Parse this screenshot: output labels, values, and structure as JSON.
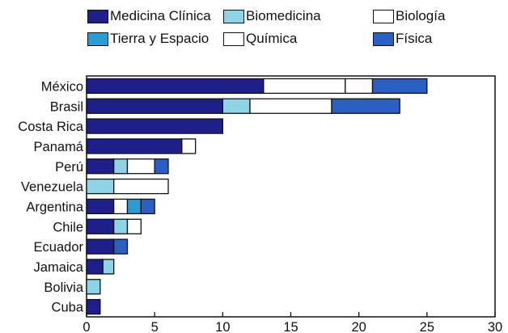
{
  "chart_data": {
    "type": "bar",
    "orientation": "horizontal",
    "stacked": true,
    "categories": [
      "México",
      "Brasil",
      "Costa Rica",
      "Panamá",
      "Perú",
      "Venezuela",
      "Argentina",
      "Chile",
      "Ecuador",
      "Jamaica",
      "Bolivia",
      "Cuba"
    ],
    "series": [
      {
        "name": "Medicina Clínica",
        "color": "#1f1f8c",
        "values": [
          13,
          10,
          10,
          7,
          2,
          0,
          2,
          2,
          2,
          1.2,
          0,
          1
        ]
      },
      {
        "name": "Biomedicina",
        "color": "#8fd4e6",
        "values": [
          0,
          2,
          0,
          0,
          1,
          2,
          0,
          1,
          0,
          0.8,
          1,
          0
        ]
      },
      {
        "name": "Biología",
        "color": "#ffffff",
        "values": [
          6,
          0,
          0,
          1,
          2,
          4,
          1,
          1,
          0,
          0,
          0,
          0
        ]
      },
      {
        "name": "Tierra y Espacio",
        "color": "#2a9bd6",
        "values": [
          0,
          0,
          0,
          0,
          0,
          0,
          1,
          0,
          0,
          0,
          0,
          0
        ]
      },
      {
        "name": "Química",
        "color": "#ffffff",
        "values": [
          2,
          6,
          0,
          0,
          0,
          0,
          0,
          0,
          0,
          0,
          0,
          0
        ]
      },
      {
        "name": "Física",
        "color": "#2b5fc4",
        "values": [
          4,
          5,
          0,
          0,
          1,
          0,
          1,
          0,
          1,
          0,
          0,
          0
        ]
      }
    ],
    "bar_order": {
      "México": [
        "Medicina Clínica",
        "Biología",
        "Química",
        "Física"
      ],
      "Brasil": [
        "Medicina Clínica",
        "Biomedicina",
        "Química",
        "Tierra y Espacio",
        "Física"
      ]
    },
    "xlim": [
      0,
      30
    ],
    "xticks": [
      0,
      5,
      10,
      15,
      20,
      25,
      30
    ],
    "grid": false,
    "legend": "top"
  },
  "legend_items": [
    {
      "label": "Medicina Clínica",
      "color": "#1f1f8c"
    },
    {
      "label": "Biomedicina",
      "color": "#8fd4e6"
    },
    {
      "label": "Biología",
      "color": "#ffffff"
    },
    {
      "label": "Tierra y Espacio",
      "color": "#2a9bd6"
    },
    {
      "label": "Química",
      "color": "#ffffff"
    },
    {
      "label": "Física",
      "color": "#2b5fc4"
    }
  ]
}
